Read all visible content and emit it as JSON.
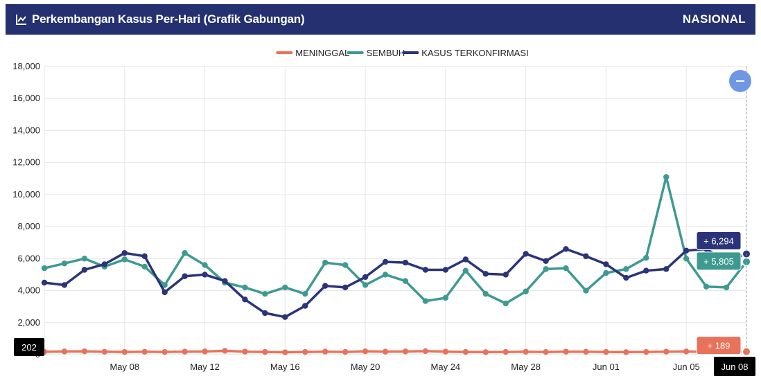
{
  "header": {
    "title": "Perkembangan Kasus Per-Hari (Grafik Gabungan)",
    "region": "NASIONAL",
    "icon": "line-chart-icon"
  },
  "zoom_button": {
    "icon": "minus-icon",
    "color": "#6f97e6"
  },
  "chart_data": {
    "type": "line",
    "title": "Perkembangan Kasus Per-Hari (Grafik Gabungan)",
    "xlabel": "",
    "ylabel": "",
    "ylim": [
      0,
      18000
    ],
    "yticks": [
      0,
      2000,
      4000,
      6000,
      8000,
      10000,
      12000,
      14000,
      16000,
      18000
    ],
    "ytick_labels": [
      "0",
      "2,000",
      "4,000",
      "6,000",
      "8,000",
      "10,000",
      "12,000",
      "14,000",
      "16,000",
      "18,000"
    ],
    "grid": true,
    "legend_position": "top-center",
    "x_start": "May 04",
    "x_end": "Jun 08",
    "x": [
      "May 04",
      "May 05",
      "May 06",
      "May 07",
      "May 08",
      "May 09",
      "May 10",
      "May 11",
      "May 12",
      "May 13",
      "May 14",
      "May 15",
      "May 16",
      "May 17",
      "May 18",
      "May 19",
      "May 20",
      "May 21",
      "May 22",
      "May 23",
      "May 24",
      "May 25",
      "May 26",
      "May 27",
      "May 28",
      "May 29",
      "May 30",
      "May 31",
      "Jun 01",
      "Jun 02",
      "Jun 03",
      "Jun 04",
      "Jun 05",
      "Jun 06",
      "Jun 07",
      "Jun 08"
    ],
    "xtick_labels": [
      "May 08",
      "May 12",
      "May 16",
      "May 20",
      "May 24",
      "May 28",
      "Jun 01",
      "Jun 05",
      "Jun 08"
    ],
    "series": [
      {
        "name": "MENINGGAL",
        "color": "#e8735a",
        "values": [
          180,
          200,
          210,
          180,
          170,
          180,
          170,
          190,
          200,
          240,
          190,
          170,
          150,
          170,
          190,
          170,
          210,
          190,
          200,
          220,
          190,
          170,
          160,
          170,
          180,
          170,
          190,
          180,
          170,
          160,
          170,
          190,
          200,
          170,
          180,
          189
        ]
      },
      {
        "name": "SEMBUH",
        "color": "#3e9a91",
        "values": [
          5400,
          5700,
          6000,
          5500,
          5950,
          5500,
          4350,
          6350,
          5600,
          4500,
          4200,
          3800,
          4200,
          3800,
          5750,
          5600,
          4350,
          5000,
          4600,
          3350,
          3550,
          5250,
          3800,
          3200,
          3950,
          5350,
          5400,
          4000,
          5100,
          5350,
          6050,
          11100,
          6000,
          4250,
          4200,
          5805
        ]
      },
      {
        "name": "KASUS TERKONFIRMASI",
        "color": "#2b3478",
        "values": [
          4500,
          4350,
          5300,
          5650,
          6350,
          6150,
          3900,
          4900,
          5000,
          4600,
          3450,
          2600,
          2350,
          3050,
          4300,
          4200,
          4850,
          5800,
          5750,
          5300,
          5300,
          5950,
          5050,
          5000,
          6300,
          5850,
          6600,
          6150,
          5650,
          4800,
          5250,
          5350,
          6500,
          6600,
          5850,
          6294
        ]
      }
    ],
    "tooltip": {
      "date": "Jun 08",
      "left_value_label": "202",
      "series_labels": [
        {
          "series": "KASUS TERKONFIRMASI",
          "text": "+ 6,294"
        },
        {
          "series": "SEMBUH",
          "text": "+ 5,805"
        },
        {
          "series": "MENINGGAL",
          "text": "+ 189"
        }
      ]
    }
  }
}
